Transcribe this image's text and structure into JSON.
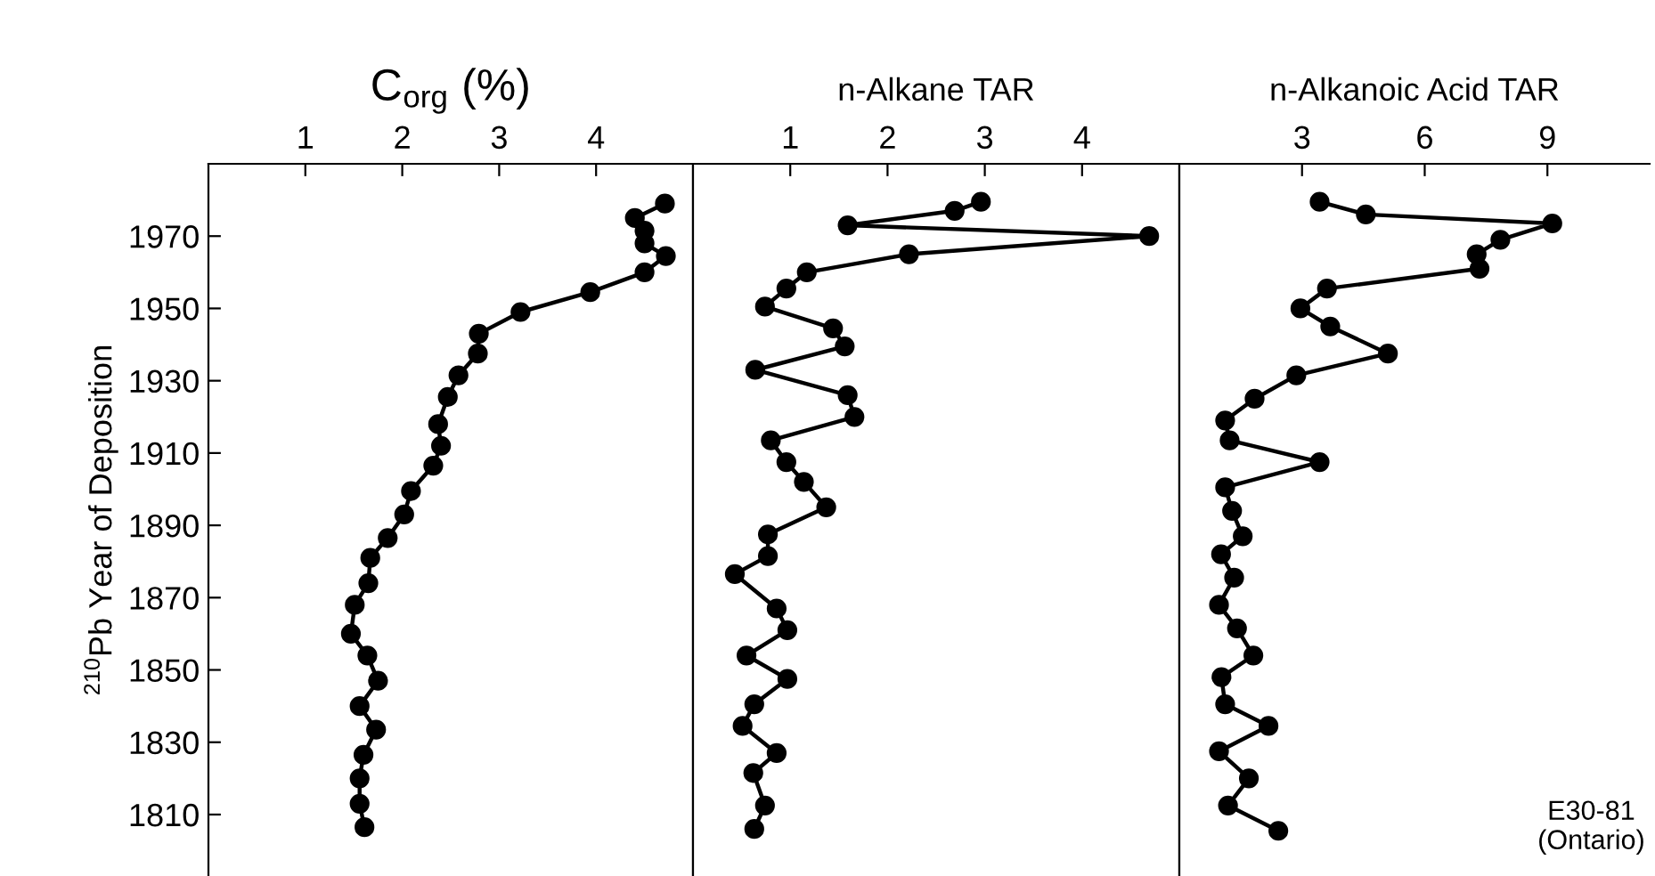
{
  "chart_data": [
    {
      "type": "line",
      "xlabel": "C$_{org}$ (%)",
      "ylabel": "$^{210}$Pb Year of Deposition",
      "marker": "circle",
      "line_style": "solid",
      "grid": false,
      "legend": false,
      "xlim": [
        0,
        5
      ],
      "xticks": [
        1,
        2,
        3,
        4
      ],
      "ylim": [
        1793,
        1990
      ],
      "yticks": [
        1810,
        1830,
        1850,
        1870,
        1890,
        1910,
        1930,
        1950,
        1970
      ],
      "series": [
        {
          "color": "#000000",
          "x": [
            4.71,
            4.4,
            4.5,
            4.5,
            4.72,
            4.5,
            3.94,
            3.22,
            2.79,
            2.78,
            2.58,
            2.47,
            2.37,
            2.4,
            2.32,
            2.09,
            2.02,
            1.85,
            1.67,
            1.65,
            1.51,
            1.47,
            1.64,
            1.75,
            1.56,
            1.73,
            1.6,
            1.56,
            1.56,
            1.61
          ],
          "values": [
            1979,
            1975,
            1971.5,
            1968,
            1964.5,
            1960,
            1954.5,
            1949,
            1943,
            1937.5,
            1931.5,
            1925.5,
            1918,
            1912,
            1906.5,
            1899.5,
            1893,
            1886.5,
            1881,
            1874,
            1868,
            1860,
            1854,
            1847,
            1840,
            1833.5,
            1826.5,
            1820,
            1813,
            1806.5
          ]
        }
      ]
    },
    {
      "type": "line",
      "xlabel": "n-Alkane TAR",
      "marker": "circle",
      "line_style": "solid",
      "grid": false,
      "legend": false,
      "tick_labels": "x",
      "xlim": [
        0,
        5
      ],
      "xticks": [
        1,
        2,
        3,
        4
      ],
      "ylim": [
        1793,
        1990
      ],
      "series": [
        {
          "color": "#000000",
          "x": [
            2.96,
            2.69,
            1.59,
            4.69,
            2.22,
            1.17,
            0.96,
            0.74,
            1.44,
            1.56,
            0.64,
            1.59,
            1.66,
            0.8,
            0.96,
            1.14,
            1.37,
            0.77,
            0.77,
            0.43,
            0.86,
            0.97,
            0.55,
            0.97,
            0.63,
            0.51,
            0.86,
            0.62,
            0.74,
            0.63
          ],
          "values": [
            1979.5,
            1977,
            1973,
            1970,
            1965,
            1960,
            1955.5,
            1950.5,
            1944.5,
            1939.5,
            1933,
            1926,
            1920,
            1913.5,
            1907.5,
            1902,
            1895,
            1887.5,
            1881.5,
            1876.5,
            1867,
            1861,
            1854,
            1847.5,
            1840.5,
            1834.5,
            1827,
            1821.5,
            1812.5,
            1806
          ]
        }
      ]
    },
    {
      "type": "line",
      "xlabel": "n-Alkanoic Acid TAR",
      "marker": "circle",
      "line_style": "solid",
      "grid": false,
      "legend": false,
      "tick_labels": "x",
      "xlim": [
        0,
        11.5
      ],
      "xticks": [
        3,
        6,
        9
      ],
      "ylim": [
        1793,
        1990
      ],
      "annotations": [
        "E30-81\n(Ontario)"
      ],
      "series": [
        {
          "color": "#000000",
          "x": [
            3.43,
            4.56,
            9.12,
            7.85,
            7.27,
            7.34,
            3.61,
            2.96,
            3.69,
            5.1,
            2.86,
            1.84,
            1.12,
            1.23,
            3.43,
            1.12,
            1.29,
            1.55,
            1.02,
            1.34,
            0.97,
            1.41,
            1.81,
            1.03,
            1.12,
            2.18,
            0.97,
            1.7,
            1.19,
            2.42
          ],
          "values": [
            1979.5,
            1976,
            1973.5,
            1969,
            1965,
            1961,
            1955.5,
            1950,
            1945,
            1937.5,
            1931.5,
            1925,
            1919,
            1913.5,
            1907.5,
            1900.5,
            1894,
            1887,
            1882,
            1875.5,
            1868,
            1861.5,
            1854,
            1848,
            1840.5,
            1834.5,
            1827.5,
            1820,
            1812.5,
            1805.5
          ]
        }
      ]
    }
  ]
}
